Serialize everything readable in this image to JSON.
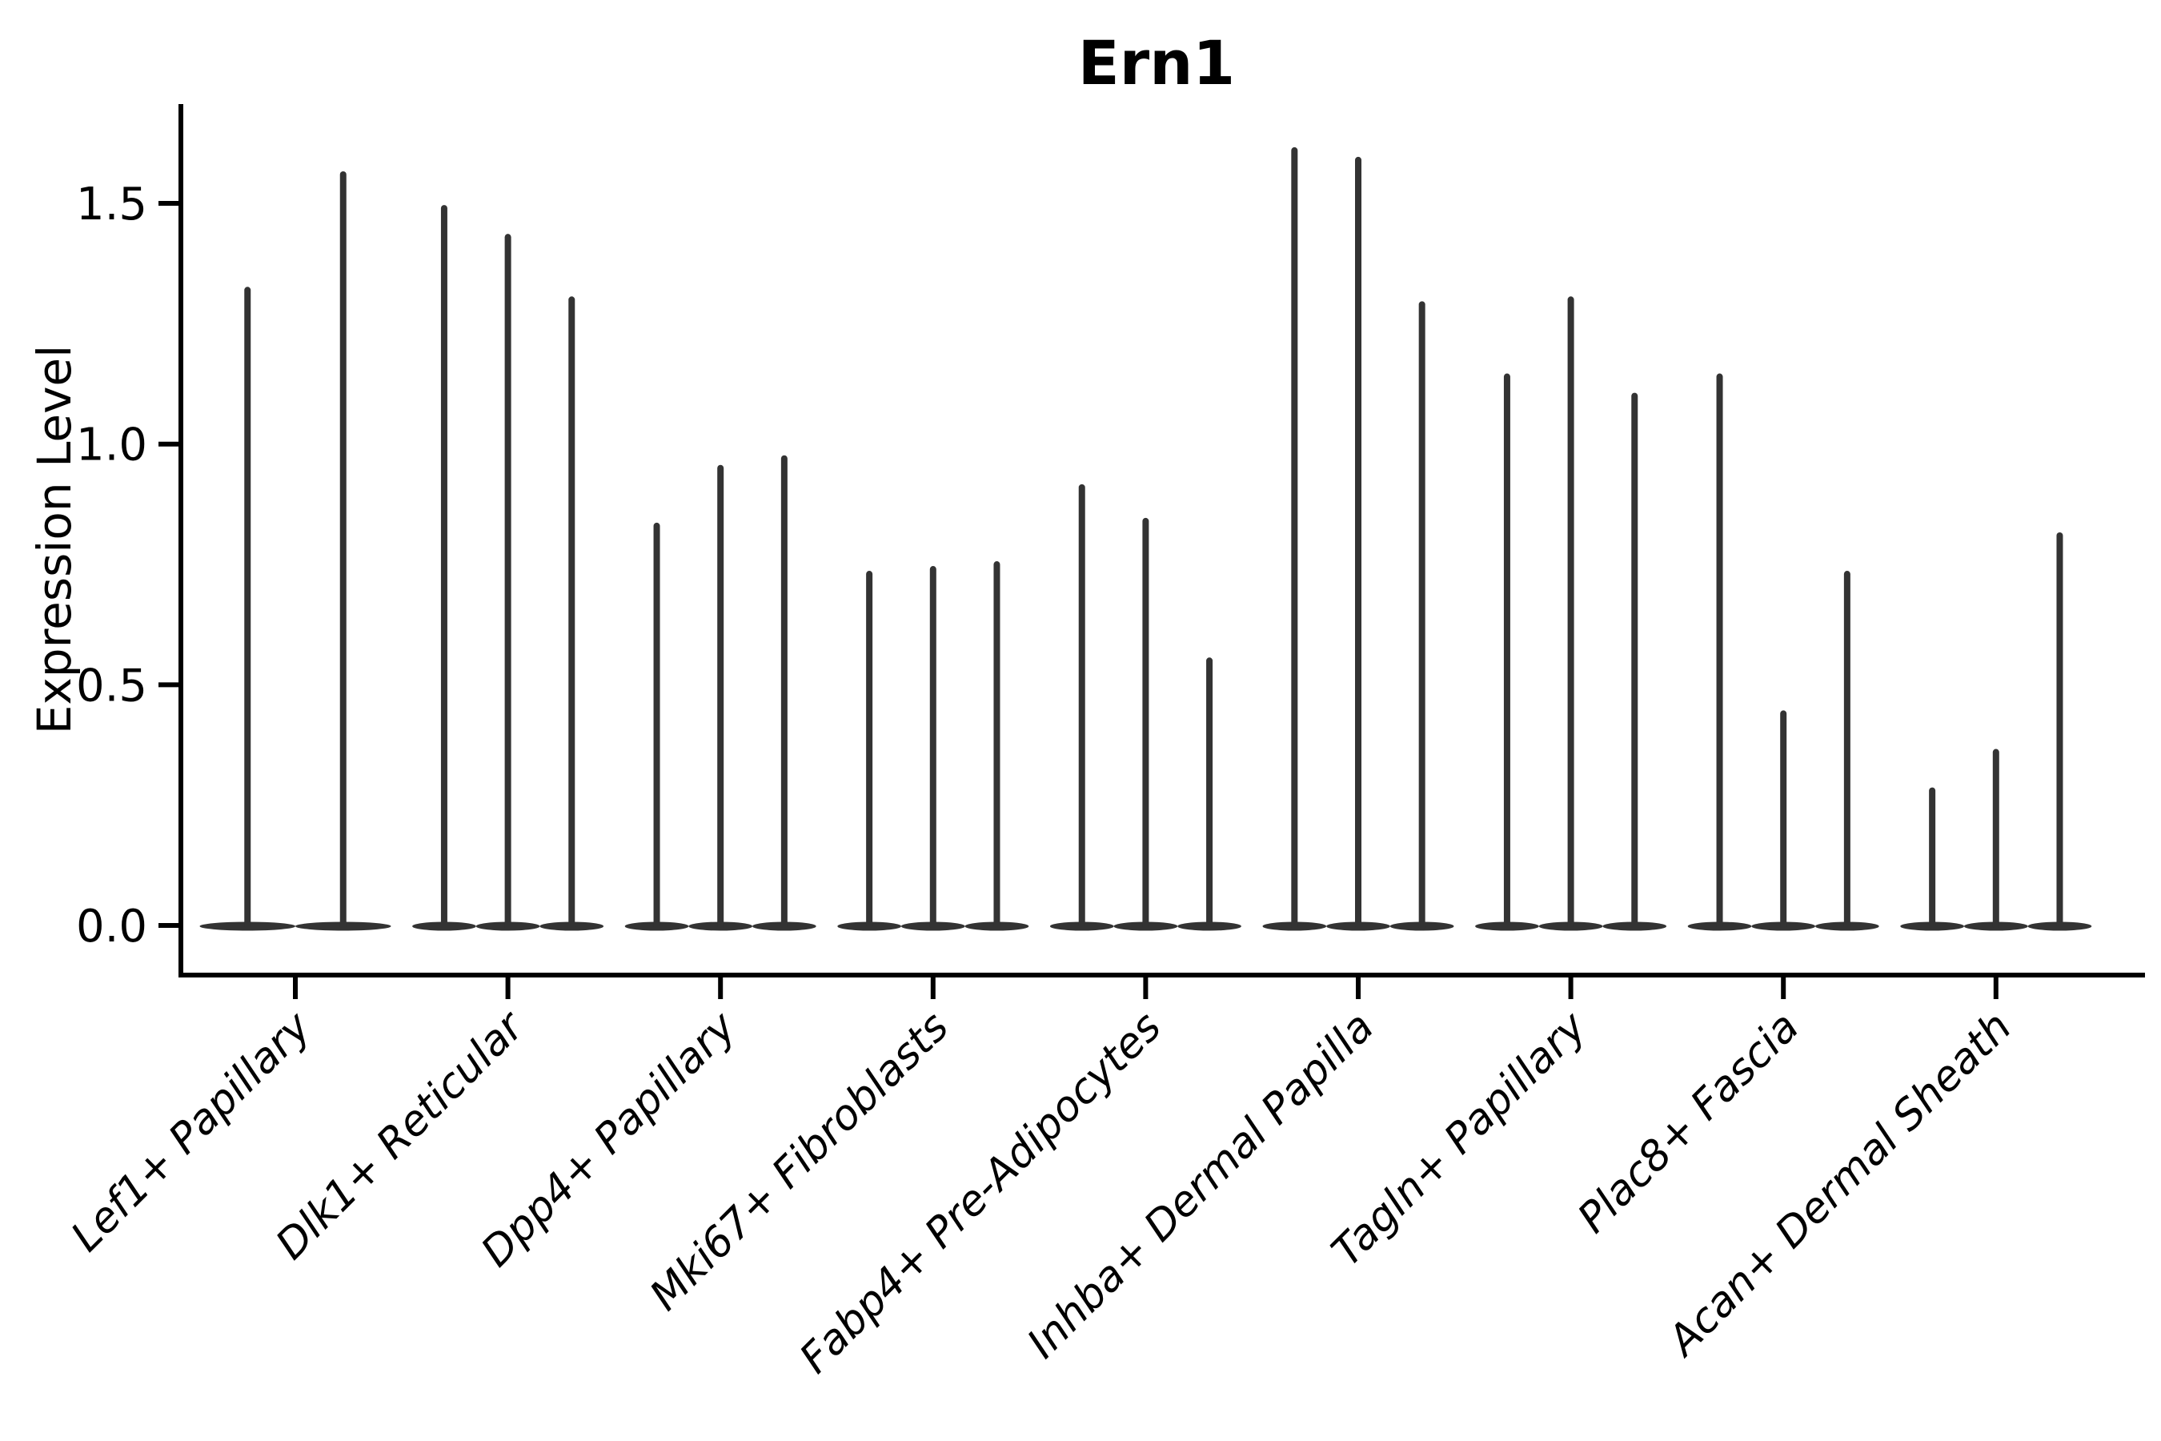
{
  "figure": {
    "background": "#ffffff"
  },
  "chart_data": {
    "type": "violin",
    "title": "Ern1",
    "ylabel": "Expression Level",
    "xlabel": "",
    "categories": [
      "Lef1+ Papillary",
      "Dlk1+ Reticular",
      "Dpp4+ Papillary",
      "Mki67+ Fibroblasts",
      "Fabp4+ Pre-Adipocytes",
      "Inhba+ Dermal Papilla",
      "Tagln+ Papillary",
      "Plac8+ Fascia",
      "Acan+ Dermal Sheath"
    ],
    "violins_per_category": [
      [
        1.32,
        1.56
      ],
      [
        1.49,
        1.43,
        1.3
      ],
      [
        0.83,
        0.95,
        0.97
      ],
      [
        0.73,
        0.74,
        0.75
      ],
      [
        0.91,
        0.84,
        0.55
      ],
      [
        1.61,
        1.59,
        1.29
      ],
      [
        1.14,
        1.3,
        1.1
      ],
      [
        1.14,
        0.44,
        0.73
      ],
      [
        0.28,
        0.36,
        0.81
      ]
    ],
    "baseline_value": 0.0,
    "yticks": [
      "0.0",
      "0.5",
      "1.0",
      "1.5"
    ],
    "ytick_values": [
      0.0,
      0.5,
      1.0,
      1.5
    ],
    "ylim": [
      -0.1,
      1.71
    ],
    "grid": false,
    "legend_position": "none",
    "x_tick_rotation_deg": 45,
    "violin_color": "#333333",
    "axis_color": "#000000"
  }
}
